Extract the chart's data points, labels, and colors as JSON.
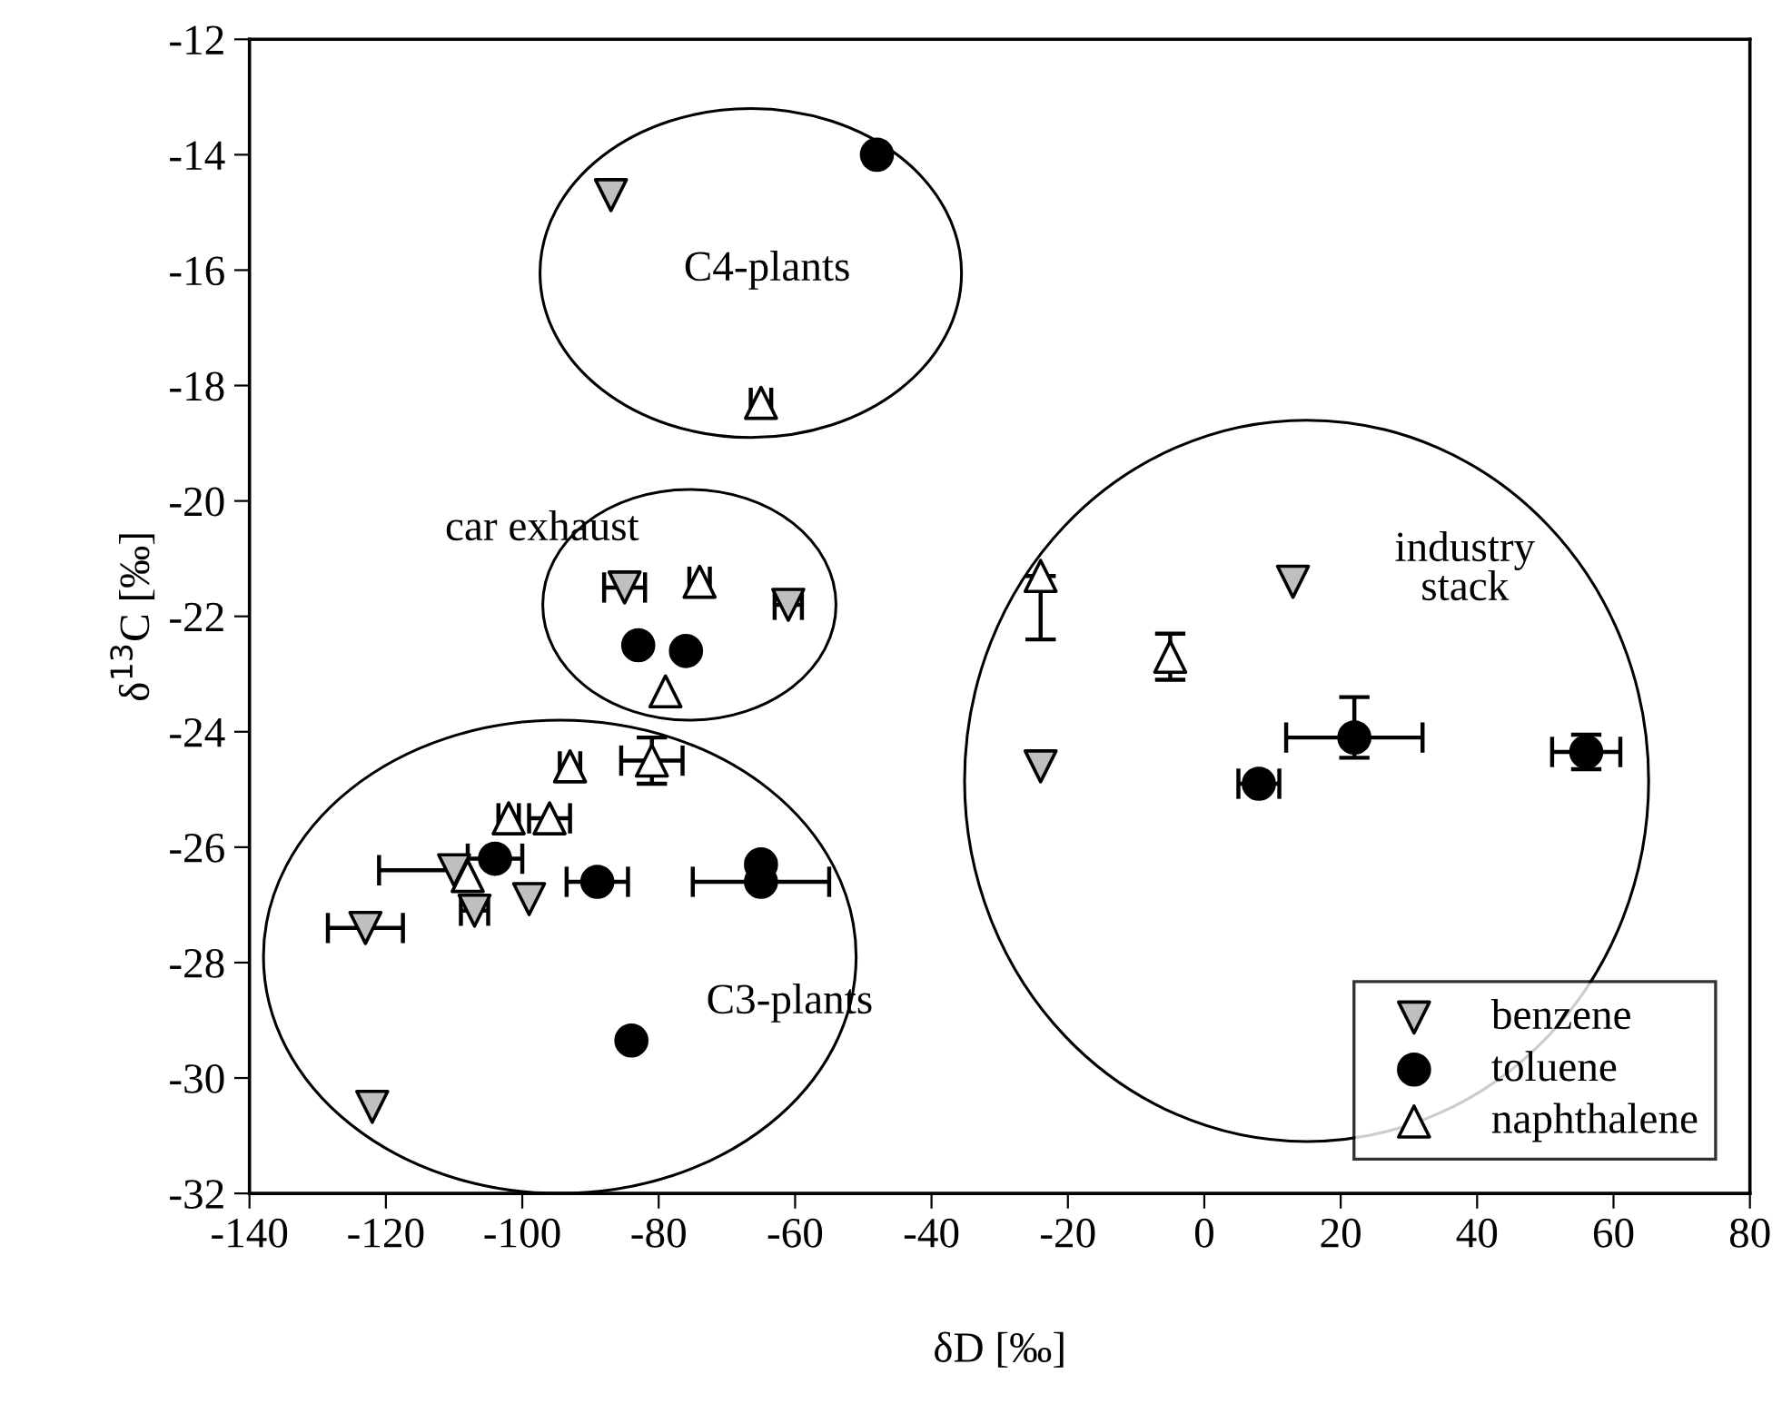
{
  "chart_data": {
    "type": "scatter",
    "xlabel": "δD [‰]",
    "ylabel": "δ$^{13}$C [‰]",
    "xlim": [
      -140,
      80
    ],
    "xticks": [
      -140,
      -120,
      -100,
      -80,
      -60,
      -40,
      -20,
      0,
      20,
      40,
      60,
      80
    ],
    "ylim": [
      -32,
      -12
    ],
    "yticks": [
      -32,
      -30,
      -28,
      -26,
      -24,
      -22,
      -20,
      -18,
      -16,
      -14,
      -12
    ],
    "grid": false,
    "legend": "bottom right",
    "series": [
      {
        "name": "benzene",
        "color": "#bfbfbf",
        "marker": "triangle_down",
        "x": [
          -87,
          -85,
          -61,
          13,
          -24,
          -123,
          -107,
          -99,
          -110,
          -122
        ],
        "values": [
          -14.7,
          -21.5,
          -21.8,
          -21.4,
          -24.6,
          -27.4,
          -27.1,
          -26.9,
          -26.4,
          -30.5
        ],
        "xerrors": [
          null,
          3,
          2,
          null,
          null,
          5.5,
          2,
          null,
          [
            -121,
            -109
          ],
          null
        ]
      },
      {
        "name": "toluene",
        "color": "#000000",
        "marker": "circle",
        "x": [
          -48,
          -83,
          -76,
          8,
          22,
          56,
          -104,
          -89,
          -65,
          -65,
          -84
        ],
        "values": [
          -14.0,
          -22.5,
          -22.6,
          -24.9,
          -24.1,
          -24.35,
          -26.2,
          -26.6,
          -26.3,
          -26.6,
          -29.35
        ],
        "xerrors": [
          null,
          null,
          null,
          3,
          10,
          5,
          4,
          4.5,
          null,
          10,
          null
        ],
        "errors": [
          null,
          null,
          null,
          null,
          [
            -24.45,
            -23.4
          ],
          0.3,
          null,
          null,
          null,
          null,
          null
        ]
      },
      {
        "name": "naphthalene",
        "color": "#ffffff",
        "marker": "triangle",
        "x": [
          -65,
          -74,
          -79,
          -24,
          -5,
          -93,
          -81,
          -102,
          -96,
          -108
        ],
        "values": [
          -18.3,
          -21.4,
          -23.3,
          -21.3,
          -22.7,
          -24.6,
          -24.5,
          -25.5,
          -25.5,
          -26.5
        ],
        "xerrors": [
          1.5,
          1.5,
          null,
          null,
          null,
          1.5,
          4.5,
          1.5,
          3,
          null
        ],
        "errors": [
          null,
          null,
          null,
          [
            -22.4,
            -21.3
          ],
          0.4,
          null,
          0.4,
          null,
          null,
          null
        ]
      }
    ],
    "annotations": [
      "C4-plants",
      "car exhaust",
      "industry stack",
      "C3-plants"
    ]
  }
}
